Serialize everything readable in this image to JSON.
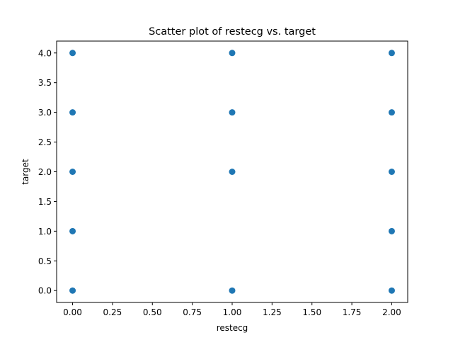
{
  "chart_data": {
    "type": "scatter",
    "title": "Scatter plot of restecg vs. target",
    "xlabel": "restecg",
    "ylabel": "target",
    "xlim": [
      -0.1,
      2.1
    ],
    "ylim": [
      -0.2,
      4.2
    ],
    "xticks": [
      0.0,
      0.25,
      0.5,
      0.75,
      1.0,
      1.25,
      1.5,
      1.75,
      2.0
    ],
    "xtick_labels": [
      "0.00",
      "0.25",
      "0.50",
      "0.75",
      "1.00",
      "1.25",
      "1.50",
      "1.75",
      "2.00"
    ],
    "yticks": [
      0.0,
      0.5,
      1.0,
      1.5,
      2.0,
      2.5,
      3.0,
      3.5,
      4.0
    ],
    "ytick_labels": [
      "0.0",
      "0.5",
      "1.0",
      "1.5",
      "2.0",
      "2.5",
      "3.0",
      "3.5",
      "4.0"
    ],
    "grid": false,
    "marker_color": "#1f77b4",
    "points": [
      {
        "x": 0,
        "y": 0
      },
      {
        "x": 0,
        "y": 1
      },
      {
        "x": 0,
        "y": 2
      },
      {
        "x": 0,
        "y": 3
      },
      {
        "x": 0,
        "y": 4
      },
      {
        "x": 1,
        "y": 0
      },
      {
        "x": 1,
        "y": 2
      },
      {
        "x": 1,
        "y": 3
      },
      {
        "x": 1,
        "y": 4
      },
      {
        "x": 2,
        "y": 0
      },
      {
        "x": 2,
        "y": 1
      },
      {
        "x": 2,
        "y": 2
      },
      {
        "x": 2,
        "y": 3
      },
      {
        "x": 2,
        "y": 4
      }
    ]
  }
}
